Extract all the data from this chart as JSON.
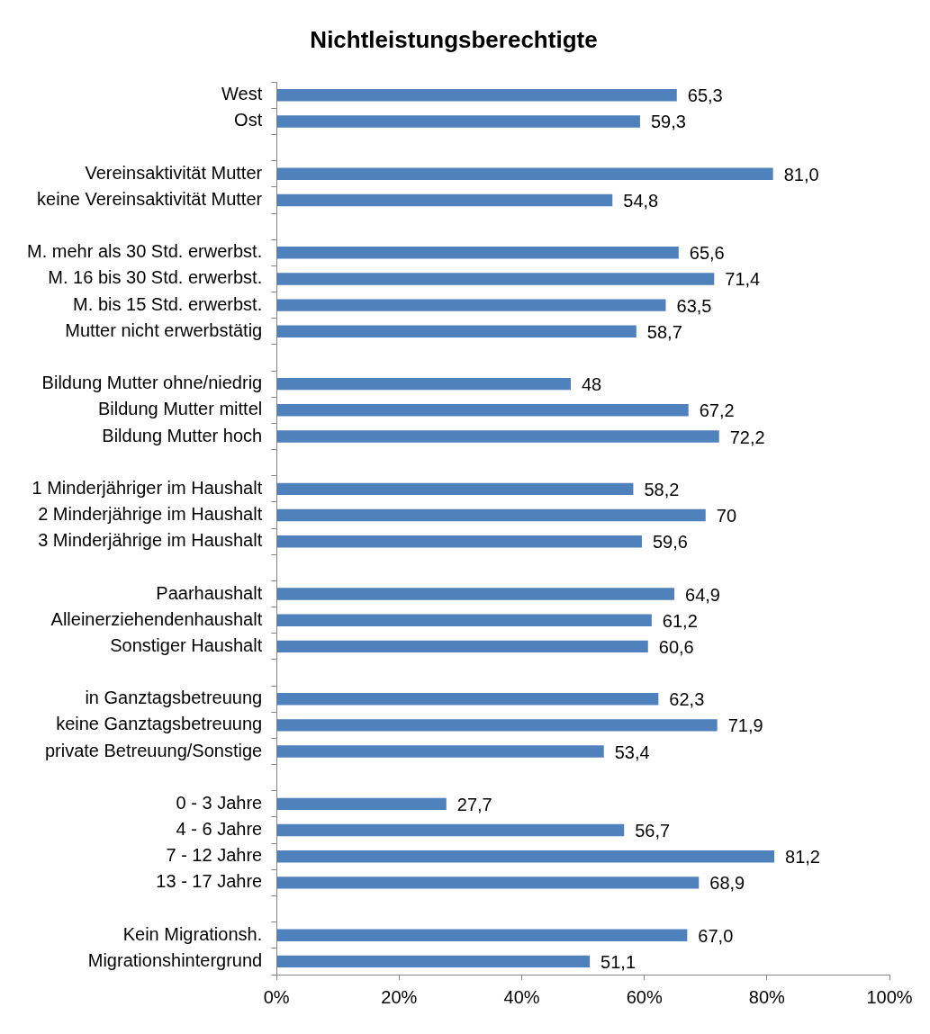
{
  "chart_data": {
    "type": "bar",
    "orientation": "horizontal",
    "title": "Nichtleistungsberechtigte",
    "categories": [
      "West",
      "Ost",
      null,
      "Vereinsaktivität Mutter",
      "keine Vereinsaktivität Mutter",
      null,
      "M. mehr als 30 Std. erwerbst.",
      "M. 16 bis 30 Std. erwerbst.",
      "M. bis 15 Std. erwerbst.",
      "Mutter nicht erwerbstätig",
      null,
      "Bildung Mutter ohne/niedrig",
      "Bildung Mutter mittel",
      "Bildung Mutter hoch",
      null,
      "1 Minderjähriger im Haushalt",
      "2 Minderjährige im Haushalt",
      "3 Minderjährige im Haushalt",
      null,
      "Paarhaushalt",
      "Alleinerziehendenhaushalt",
      "Sonstiger Haushalt",
      null,
      "in Ganztagsbetreuung",
      "keine Ganztagsbetreuung",
      "private Betreuung/Sonstige",
      null,
      "0 - 3 Jahre",
      "4 - 6 Jahre",
      "7 - 12 Jahre",
      "13 - 17 Jahre",
      null,
      "Kein Migrationsh.",
      "Migrationshintergrund"
    ],
    "values": [
      65.3,
      59.3,
      null,
      81.0,
      54.8,
      null,
      65.6,
      71.4,
      63.5,
      58.7,
      null,
      48,
      67.2,
      72.2,
      null,
      58.2,
      70,
      59.6,
      null,
      64.9,
      61.2,
      60.6,
      null,
      62.3,
      71.9,
      53.4,
      null,
      27.7,
      56.7,
      81.2,
      68.9,
      null,
      67.0,
      51.1
    ],
    "value_labels": [
      "65,3",
      "59,3",
      null,
      "81,0",
      "54,8",
      null,
      "65,6",
      "71,4",
      "63,5",
      "58,7",
      null,
      "48",
      "67,2",
      "72,2",
      null,
      "58,2",
      "70",
      "59,6",
      null,
      "64,9",
      "61,2",
      "60,6",
      null,
      "62,3",
      "71,9",
      "53,4",
      null,
      "27,7",
      "56,7",
      "81,2",
      "68,9",
      null,
      "67,0",
      "51,1"
    ],
    "color": "#4f81bd",
    "xlim": [
      0,
      100
    ],
    "xticks": [
      {
        "value": 0,
        "label": "0%"
      },
      {
        "value": 20,
        "label": "20%"
      },
      {
        "value": 40,
        "label": "40%"
      },
      {
        "value": 60,
        "label": "60%"
      },
      {
        "value": 80,
        "label": "80%"
      },
      {
        "value": 100,
        "label": "100%"
      }
    ],
    "grid": false,
    "legend": false
  }
}
